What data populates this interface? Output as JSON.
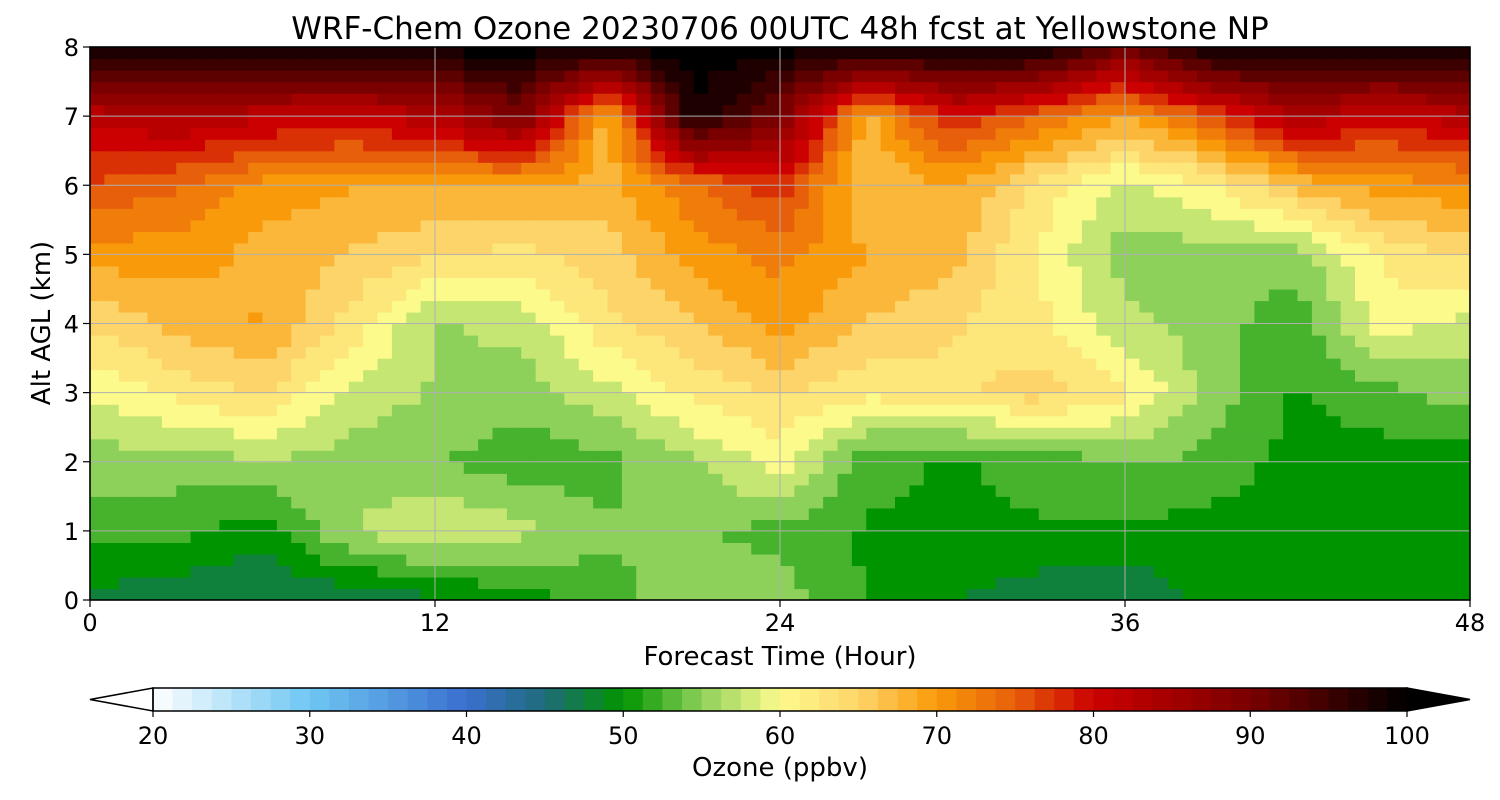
{
  "chart_data": {
    "type": "heatmap",
    "title": "WRF-Chem Ozone  20230706 00UTC 48h fcst at Yellowstone NP",
    "xlabel": "Forecast Time (Hour)",
    "ylabel": "Alt AGL (km)",
    "xlim": [
      0,
      48
    ],
    "ylim": [
      0,
      8
    ],
    "xticks": [
      0,
      12,
      24,
      36,
      48
    ],
    "yticks": [
      0,
      1,
      2,
      3,
      4,
      5,
      6,
      7,
      8
    ],
    "grid": true,
    "colorbar": {
      "label": "Ozone  (ppbv)",
      "min": 20,
      "max": 100,
      "ticks": [
        20,
        30,
        40,
        50,
        60,
        70,
        80,
        90,
        100
      ],
      "extend": "both",
      "orientation": "horizontal",
      "stops": [
        {
          "v": 20,
          "c": "#ffffff"
        },
        {
          "v": 30,
          "c": "#6ec6f2"
        },
        {
          "v": 40,
          "c": "#3a6fcf"
        },
        {
          "v": 45,
          "c": "#1f6b7a"
        },
        {
          "v": 50,
          "c": "#009400"
        },
        {
          "v": 55,
          "c": "#8ed15a"
        },
        {
          "v": 60,
          "c": "#fdfa8c"
        },
        {
          "v": 65,
          "c": "#fdd46a"
        },
        {
          "v": 70,
          "c": "#f99a0a"
        },
        {
          "v": 75,
          "c": "#e75f0a"
        },
        {
          "v": 80,
          "c": "#cc0000"
        },
        {
          "v": 90,
          "c": "#7a0000"
        },
        {
          "v": 100,
          "c": "#000000"
        }
      ]
    },
    "x": [
      0,
      3,
      6,
      9,
      12,
      15,
      18,
      21,
      24,
      27,
      30,
      33,
      36,
      39,
      42,
      45,
      48
    ],
    "y": [
      0,
      1,
      2,
      3,
      4,
      5,
      6,
      7,
      8
    ],
    "z": [
      [
        48,
        47,
        46,
        47,
        48,
        50,
        53,
        55,
        55,
        51,
        49,
        47,
        46,
        50,
        50,
        50,
        50
      ],
      [
        52,
        52,
        50,
        56,
        59,
        57,
        54,
        54,
        53,
        51,
        51,
        51,
        51,
        50,
        50,
        50,
        50
      ],
      [
        55,
        55,
        56,
        55,
        54,
        52,
        53,
        56,
        60,
        52,
        51,
        52,
        54,
        53,
        50,
        50,
        50
      ],
      [
        59,
        62,
        64,
        58,
        56,
        55,
        58,
        62,
        64,
        62,
        63,
        65,
        62,
        55,
        51,
        53,
        55
      ],
      [
        64,
        67,
        69,
        63,
        56,
        57,
        63,
        66,
        70,
        66,
        64,
        62,
        57,
        55,
        52,
        60,
        58
      ],
      [
        70,
        70,
        68,
        66,
        64,
        63,
        65,
        70,
        72,
        69,
        67,
        61,
        55,
        55,
        55,
        62,
        64
      ],
      [
        76,
        74,
        70,
        69,
        69,
        69,
        68,
        73,
        78,
        66,
        69,
        63,
        58,
        61,
        67,
        70,
        71
      ],
      [
        82,
        84,
        82,
        81,
        83,
        90,
        67,
        99,
        90,
        68,
        79,
        74,
        69,
        76,
        84,
        80,
        83
      ],
      [
        100,
        100,
        100,
        100,
        100,
        100,
        100,
        100,
        100,
        100,
        100,
        100,
        91,
        100,
        100,
        100,
        100
      ]
    ]
  }
}
